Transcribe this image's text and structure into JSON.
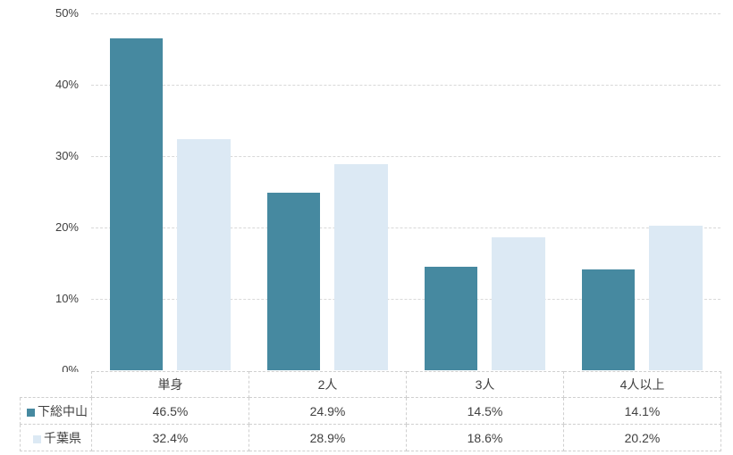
{
  "chart_data": {
    "type": "bar",
    "title": "",
    "categories": [
      "単身",
      "2人",
      "3人",
      "4人以上"
    ],
    "xlabel": "",
    "ylabel": "",
    "ylim": [
      0,
      50
    ],
    "yticks": [
      0,
      10,
      20,
      30,
      40,
      50
    ],
    "ytick_labels": [
      "0%",
      "10%",
      "20%",
      "30%",
      "40%",
      "50%"
    ],
    "grid": "horizontal dashed gridlines on",
    "legend_position": "left column of data table below chart",
    "series": [
      {
        "name": "下総中山",
        "color": "#4689A0",
        "values": [
          46.5,
          24.9,
          14.5,
          14.1
        ],
        "labels": [
          "46.5%",
          "24.9%",
          "14.5%",
          "14.1%"
        ]
      },
      {
        "name": "千葉県",
        "color": "#DCE9F4",
        "values": [
          32.4,
          28.9,
          18.6,
          20.2
        ],
        "labels": [
          "32.4%",
          "28.9%",
          "18.6%",
          "20.2%"
        ]
      }
    ],
    "colors": {
      "series1": "#4689A0",
      "series2": "#DCE9F4",
      "gridline": "#D9D9D9",
      "axis_text": "#404040",
      "table_border": "#CFCFCF",
      "background": "#FFFFFF"
    }
  }
}
